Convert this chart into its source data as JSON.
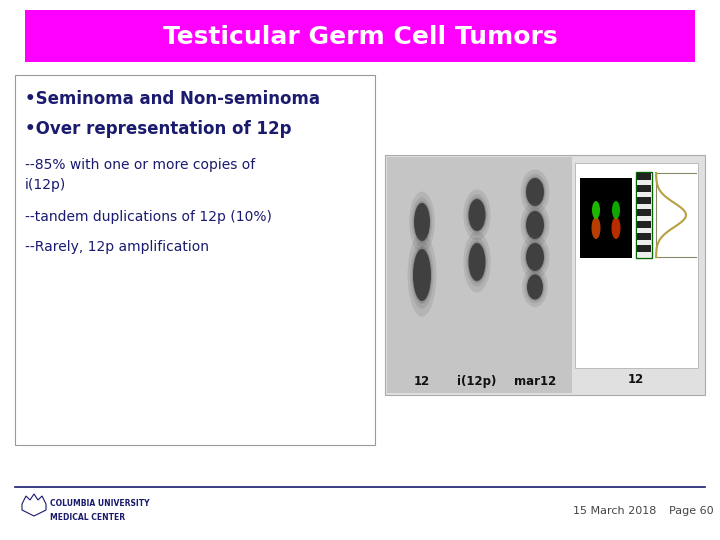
{
  "title": "Testicular Germ Cell Tumors",
  "title_bg_color": "#FF00FF",
  "title_text_color": "#FFFFFF",
  "title_fontsize": 18,
  "slide_bg_color": "#FFFFFF",
  "bullet_color": "#1a1a6e",
  "text_box_border_color": "#999999",
  "footer_line_color": "#1a1a6e",
  "footer_date": "15 March 2018",
  "footer_page": "Page 60",
  "footer_fontsize": 8,
  "columbia_text_color": "#1a1a6e"
}
